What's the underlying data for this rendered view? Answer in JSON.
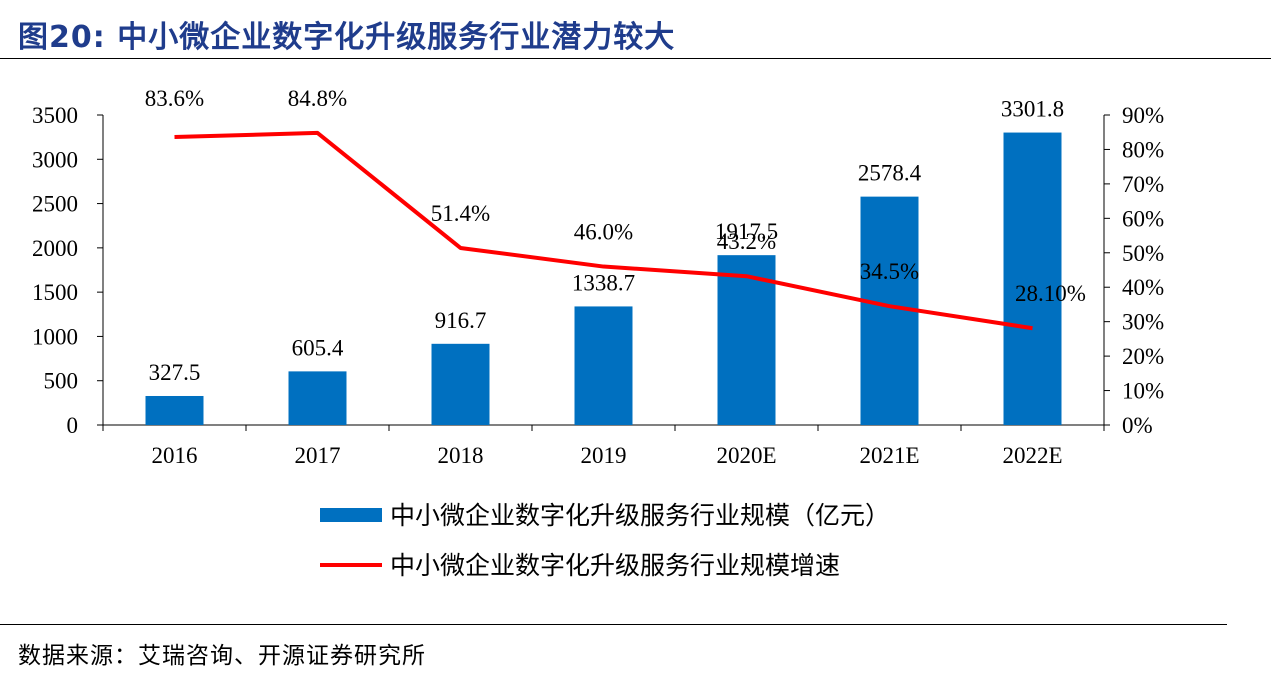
{
  "figure": {
    "title": "图20:  中小微企业数字化升级服务行业潜力较大",
    "source": "数据来源：艾瑞咨询、开源证券研究所"
  },
  "chart_data": {
    "type": "bar",
    "categories": [
      "2016",
      "2017",
      "2018",
      "2019",
      "2020E",
      "2021E",
      "2022E"
    ],
    "series": [
      {
        "name": "中小微企业数字化升级服务行业规模（亿元）",
        "type": "bar",
        "axis": "left",
        "color": "#0070c0",
        "values": [
          327.5,
          605.4,
          916.7,
          1338.7,
          1917.5,
          2578.4,
          3301.8
        ],
        "labels": [
          "327.5",
          "605.4",
          "916.7",
          "1338.7",
          "1917.5",
          "2578.4",
          "3301.8"
        ]
      },
      {
        "name": "中小微企业数字化升级服务行业规模增速",
        "type": "line",
        "axis": "right",
        "color": "#ff0000",
        "values": [
          83.6,
          84.8,
          51.4,
          46.0,
          43.2,
          34.5,
          28.1
        ],
        "labels": [
          "83.6%",
          "84.8%",
          "51.4%",
          "46.0%",
          "43.2%",
          "34.5%",
          "28.10%"
        ]
      }
    ],
    "y_left": {
      "min": 0,
      "max": 3500,
      "ticks": [
        "0",
        "500",
        "1000",
        "1500",
        "2000",
        "2500",
        "3000",
        "3500"
      ]
    },
    "y_right": {
      "min": 0,
      "max": 90,
      "ticks": [
        "0%",
        "10%",
        "20%",
        "30%",
        "40%",
        "50%",
        "60%",
        "70%",
        "80%",
        "90%"
      ]
    },
    "grid": false,
    "legend_position": "bottom"
  }
}
